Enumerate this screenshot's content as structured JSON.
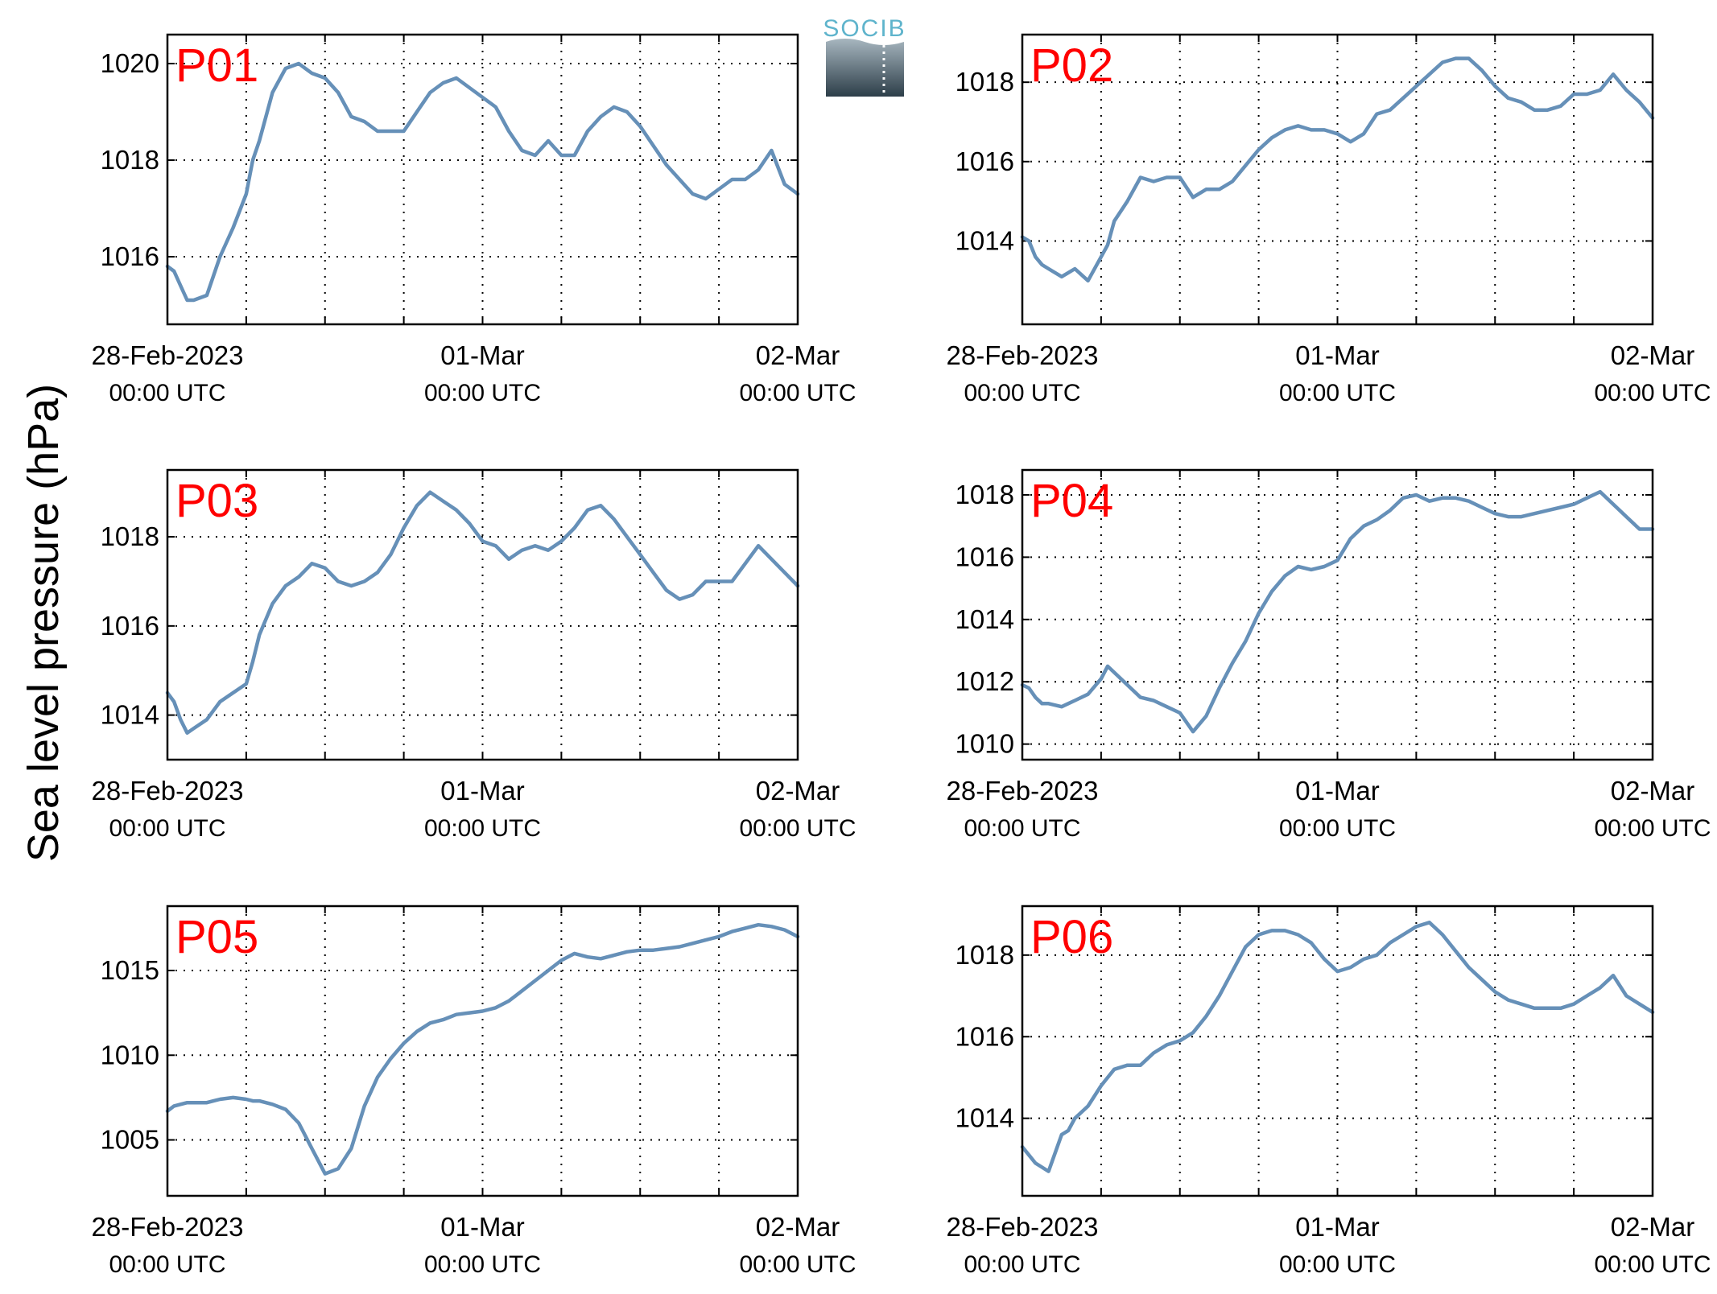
{
  "figure": {
    "ylabel": "Sea level pressure (hPa)",
    "logo_text": "SOCIB",
    "line_color": "#6690b8",
    "label_color": "#ff0000"
  },
  "chart_data": [
    {
      "type": "line",
      "title": "P01",
      "x_range_hours": [
        0,
        48
      ],
      "x_ticks": [
        {
          "date": "28-Feb-2023",
          "time": "00:00 UTC"
        },
        {
          "date": "01-Mar",
          "time": "00:00 UTC"
        },
        {
          "date": "02-Mar",
          "time": "00:00 UTC"
        }
      ],
      "ylim": [
        1014.6,
        1020.6
      ],
      "yticks": [
        1016,
        1018,
        1020
      ],
      "grid": true,
      "series": [
        {
          "x": [
            0,
            0.5,
            1,
            1.5,
            2,
            3,
            3.5,
            4,
            5,
            6,
            6.5,
            7,
            8,
            9,
            10,
            11,
            12,
            13,
            14,
            15,
            16,
            17,
            18,
            19,
            20,
            21,
            22,
            23,
            24,
            25,
            26,
            27,
            28,
            29,
            30,
            31,
            32,
            33,
            34,
            35,
            36,
            37,
            38,
            39,
            40,
            41,
            42,
            43,
            44,
            45,
            46,
            47,
            48
          ],
          "y": [
            1015.8,
            1015.7,
            1015.4,
            1015.1,
            1015.1,
            1015.2,
            1015.6,
            1016.0,
            1016.6,
            1017.3,
            1018.0,
            1018.4,
            1019.4,
            1019.9,
            1020.0,
            1019.8,
            1019.7,
            1019.4,
            1018.9,
            1018.8,
            1018.6,
            1018.6,
            1018.6,
            1019.0,
            1019.4,
            1019.6,
            1019.7,
            1019.5,
            1019.3,
            1019.1,
            1018.6,
            1018.2,
            1018.1,
            1018.4,
            1018.1,
            1018.1,
            1018.6,
            1018.9,
            1019.1,
            1019.0,
            1018.7,
            1018.3,
            1017.9,
            1017.6,
            1017.3,
            1017.2,
            1017.4,
            1017.6,
            1017.6,
            1017.8,
            1018.2,
            1017.5,
            1017.3
          ]
        }
      ]
    },
    {
      "type": "line",
      "title": "P02",
      "x_range_hours": [
        0,
        48
      ],
      "x_ticks": [
        {
          "date": "28-Feb-2023",
          "time": "00:00 UTC"
        },
        {
          "date": "01-Mar",
          "time": "00:00 UTC"
        },
        {
          "date": "02-Mar",
          "time": "00:00 UTC"
        }
      ],
      "ylim": [
        1011.9,
        1019.2
      ],
      "yticks": [
        1014,
        1016,
        1018
      ],
      "grid": true,
      "series": [
        {
          "x": [
            0,
            0.5,
            1,
            1.5,
            2,
            3,
            3.5,
            4,
            5,
            6,
            6.5,
            7,
            8,
            9,
            10,
            11,
            12,
            13,
            14,
            15,
            16,
            17,
            18,
            19,
            20,
            21,
            22,
            23,
            24,
            25,
            26,
            27,
            28,
            29,
            30,
            31,
            32,
            33,
            34,
            35,
            36,
            37,
            38,
            39,
            40,
            41,
            42,
            43,
            44,
            45,
            46,
            47,
            48
          ],
          "y": [
            1014.1,
            1014.0,
            1013.6,
            1013.4,
            1013.3,
            1013.1,
            1013.2,
            1013.3,
            1013.0,
            1013.6,
            1013.9,
            1014.5,
            1015.0,
            1015.6,
            1015.5,
            1015.6,
            1015.6,
            1015.1,
            1015.3,
            1015.3,
            1015.5,
            1015.9,
            1016.3,
            1016.6,
            1016.8,
            1016.9,
            1016.8,
            1016.8,
            1016.7,
            1016.5,
            1016.7,
            1017.2,
            1017.3,
            1017.6,
            1017.9,
            1018.2,
            1018.5,
            1018.6,
            1018.6,
            1018.3,
            1017.9,
            1017.6,
            1017.5,
            1017.3,
            1017.3,
            1017.4,
            1017.7,
            1017.7,
            1017.8,
            1018.2,
            1017.8,
            1017.5,
            1017.1
          ]
        }
      ]
    },
    {
      "type": "line",
      "title": "P03",
      "x_range_hours": [
        0,
        48
      ],
      "x_ticks": [
        {
          "date": "28-Feb-2023",
          "time": "00:00 UTC"
        },
        {
          "date": "01-Mar",
          "time": "00:00 UTC"
        },
        {
          "date": "02-Mar",
          "time": "00:00 UTC"
        }
      ],
      "ylim": [
        1013.0,
        1019.5
      ],
      "yticks": [
        1014,
        1016,
        1018
      ],
      "grid": true,
      "series": [
        {
          "x": [
            0,
            0.5,
            1,
            1.5,
            2,
            3,
            3.5,
            4,
            5,
            6,
            6.5,
            7,
            8,
            9,
            10,
            11,
            12,
            13,
            14,
            15,
            16,
            17,
            18,
            19,
            20,
            21,
            22,
            23,
            24,
            25,
            26,
            27,
            28,
            29,
            30,
            31,
            32,
            33,
            34,
            35,
            36,
            37,
            38,
            39,
            40,
            41,
            42,
            43,
            44,
            45,
            46,
            47,
            48
          ],
          "y": [
            1014.5,
            1014.3,
            1013.9,
            1013.6,
            1013.7,
            1013.9,
            1014.1,
            1014.3,
            1014.5,
            1014.7,
            1015.2,
            1015.8,
            1016.5,
            1016.9,
            1017.1,
            1017.4,
            1017.3,
            1017.0,
            1016.9,
            1017.0,
            1017.2,
            1017.6,
            1018.2,
            1018.7,
            1019.0,
            1018.8,
            1018.6,
            1018.3,
            1017.9,
            1017.8,
            1017.5,
            1017.7,
            1017.8,
            1017.7,
            1017.9,
            1018.2,
            1018.6,
            1018.7,
            1018.4,
            1018.0,
            1017.6,
            1017.2,
            1016.8,
            1016.6,
            1016.7,
            1017.0,
            1017.0,
            1017.0,
            1017.4,
            1017.8,
            1017.5,
            1017.2,
            1016.9
          ]
        }
      ]
    },
    {
      "type": "line",
      "title": "P04",
      "x_range_hours": [
        0,
        48
      ],
      "x_ticks": [
        {
          "date": "28-Feb-2023",
          "time": "00:00 UTC"
        },
        {
          "date": "01-Mar",
          "time": "00:00 UTC"
        },
        {
          "date": "02-Mar",
          "time": "00:00 UTC"
        }
      ],
      "ylim": [
        1009.5,
        1018.8
      ],
      "yticks": [
        1010,
        1012,
        1014,
        1016,
        1018
      ],
      "grid": true,
      "series": [
        {
          "x": [
            0,
            0.5,
            1,
            1.5,
            2,
            3,
            3.5,
            4,
            5,
            6,
            6.5,
            7,
            8,
            9,
            10,
            11,
            12,
            13,
            14,
            15,
            16,
            17,
            18,
            19,
            20,
            21,
            22,
            23,
            24,
            25,
            26,
            27,
            28,
            29,
            30,
            31,
            32,
            33,
            34,
            35,
            36,
            37,
            38,
            39,
            40,
            41,
            42,
            43,
            44,
            45,
            46,
            47,
            48
          ],
          "y": [
            1011.9,
            1011.8,
            1011.5,
            1011.3,
            1011.3,
            1011.2,
            1011.3,
            1011.4,
            1011.6,
            1012.1,
            1012.5,
            1012.3,
            1011.9,
            1011.5,
            1011.4,
            1011.2,
            1011.0,
            1010.4,
            1010.9,
            1011.8,
            1012.6,
            1013.3,
            1014.2,
            1014.9,
            1015.4,
            1015.7,
            1015.6,
            1015.7,
            1015.9,
            1016.6,
            1017.0,
            1017.2,
            1017.5,
            1017.9,
            1018.0,
            1017.8,
            1017.9,
            1017.9,
            1017.8,
            1017.6,
            1017.4,
            1017.3,
            1017.3,
            1017.4,
            1017.5,
            1017.6,
            1017.7,
            1017.9,
            1018.1,
            1017.7,
            1017.3,
            1016.9,
            1016.9
          ]
        }
      ]
    },
    {
      "type": "line",
      "title": "P05",
      "x_range_hours": [
        0,
        48
      ],
      "x_ticks": [
        {
          "date": "28-Feb-2023",
          "time": "00:00 UTC"
        },
        {
          "date": "01-Mar",
          "time": "00:00 UTC"
        },
        {
          "date": "02-Mar",
          "time": "00:00 UTC"
        }
      ],
      "ylim": [
        1001.7,
        1018.8
      ],
      "yticks": [
        1005,
        1010,
        1015
      ],
      "grid": true,
      "series": [
        {
          "x": [
            0,
            0.5,
            1,
            1.5,
            2,
            3,
            3.5,
            4,
            5,
            6,
            6.5,
            7,
            8,
            9,
            10,
            11,
            12,
            13,
            14,
            15,
            16,
            17,
            18,
            19,
            20,
            21,
            22,
            23,
            24,
            25,
            26,
            27,
            28,
            29,
            30,
            31,
            32,
            33,
            34,
            35,
            36,
            37,
            38,
            39,
            40,
            41,
            42,
            43,
            44,
            45,
            46,
            47,
            48
          ],
          "y": [
            1006.7,
            1007.0,
            1007.1,
            1007.2,
            1007.2,
            1007.2,
            1007.3,
            1007.4,
            1007.5,
            1007.4,
            1007.3,
            1007.3,
            1007.1,
            1006.8,
            1006.0,
            1004.5,
            1003.0,
            1003.3,
            1004.5,
            1007.0,
            1008.7,
            1009.8,
            1010.7,
            1011.4,
            1011.9,
            1012.1,
            1012.4,
            1012.5,
            1012.6,
            1012.8,
            1013.2,
            1013.8,
            1014.4,
            1015.0,
            1015.6,
            1016.0,
            1015.8,
            1015.7,
            1015.9,
            1016.1,
            1016.2,
            1016.2,
            1016.3,
            1016.4,
            1016.6,
            1016.8,
            1017.0,
            1017.3,
            1017.5,
            1017.7,
            1017.6,
            1017.4,
            1017.0
          ]
        }
      ]
    },
    {
      "type": "line",
      "title": "P06",
      "x_range_hours": [
        0,
        48
      ],
      "x_ticks": [
        {
          "date": "28-Feb-2023",
          "time": "00:00 UTC"
        },
        {
          "date": "01-Mar",
          "time": "00:00 UTC"
        },
        {
          "date": "02-Mar",
          "time": "00:00 UTC"
        }
      ],
      "ylim": [
        1012.1,
        1019.2
      ],
      "yticks": [
        1014,
        1016,
        1018
      ],
      "grid": true,
      "series": [
        {
          "x": [
            0,
            0.5,
            1,
            1.5,
            2,
            3,
            3.5,
            4,
            5,
            6,
            6.5,
            7,
            8,
            9,
            10,
            11,
            12,
            13,
            14,
            15,
            16,
            17,
            18,
            19,
            20,
            21,
            22,
            23,
            24,
            25,
            26,
            27,
            28,
            29,
            30,
            31,
            32,
            33,
            34,
            35,
            36,
            37,
            38,
            39,
            40,
            41,
            42,
            43,
            44,
            45,
            46,
            47,
            48
          ],
          "y": [
            1013.3,
            1013.1,
            1012.9,
            1012.8,
            1012.7,
            1013.6,
            1013.7,
            1014.0,
            1014.3,
            1014.8,
            1015.0,
            1015.2,
            1015.3,
            1015.3,
            1015.6,
            1015.8,
            1015.9,
            1016.1,
            1016.5,
            1017.0,
            1017.6,
            1018.2,
            1018.5,
            1018.6,
            1018.6,
            1018.5,
            1018.3,
            1017.9,
            1017.6,
            1017.7,
            1017.9,
            1018.0,
            1018.3,
            1018.5,
            1018.7,
            1018.8,
            1018.5,
            1018.1,
            1017.7,
            1017.4,
            1017.1,
            1016.9,
            1016.8,
            1016.7,
            1016.7,
            1016.7,
            1016.8,
            1017.0,
            1017.2,
            1017.5,
            1017.0,
            1016.8,
            1016.6
          ]
        }
      ]
    }
  ]
}
